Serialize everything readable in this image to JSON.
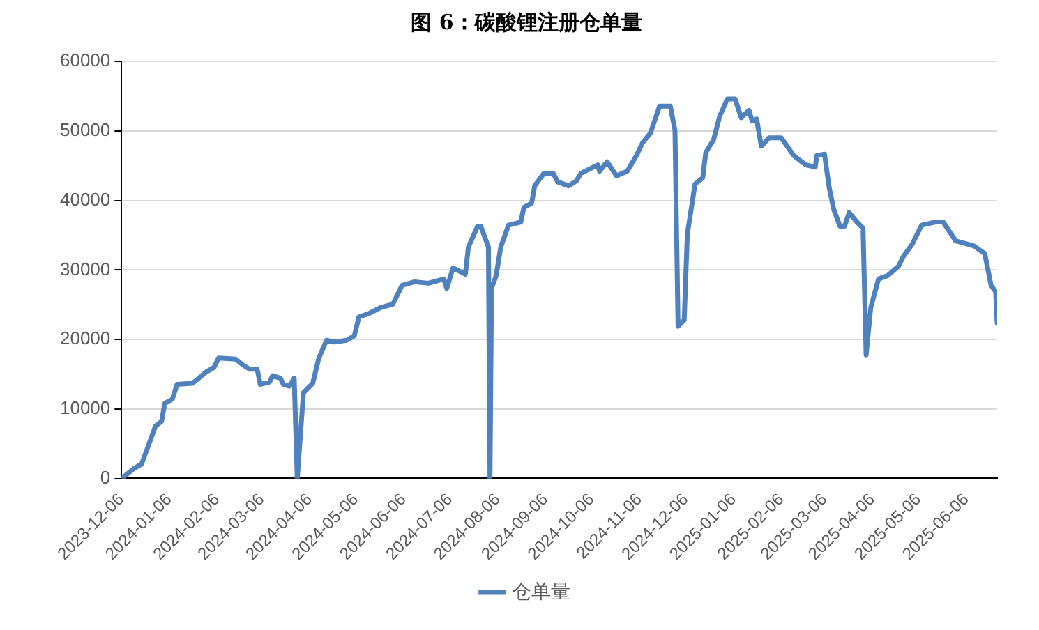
{
  "chart_data": {
    "type": "line",
    "title": "图 6：碳酸锂注册仓单量",
    "x": [
      "2023-12-06",
      "2023-12-14",
      "2023-12-19",
      "2023-12-22",
      "2023-12-28",
      "2024-01-01",
      "2024-01-03",
      "2024-01-08",
      "2024-01-11",
      "2024-01-21",
      "2024-01-30",
      "2024-02-04",
      "2024-02-07",
      "2024-02-18",
      "2024-02-23",
      "2024-02-27",
      "2024-03-03",
      "2024-03-05",
      "2024-03-11",
      "2024-03-13",
      "2024-03-18",
      "2024-03-20",
      "2024-03-24",
      "2024-03-27",
      "2024-03-29",
      "2024-04-02",
      "2024-04-08",
      "2024-04-12",
      "2024-04-17",
      "2024-04-22",
      "2024-04-30",
      "2024-05-05",
      "2024-05-08",
      "2024-05-14",
      "2024-05-22",
      "2024-05-30",
      "2024-06-05",
      "2024-06-13",
      "2024-06-22",
      "2024-07-02",
      "2024-07-04",
      "2024-07-08",
      "2024-07-16",
      "2024-07-18",
      "2024-07-24",
      "2024-07-26",
      "2024-07-31",
      "2024-08-01",
      "2024-08-02",
      "2024-08-05",
      "2024-08-08",
      "2024-08-13",
      "2024-08-21",
      "2024-08-23",
      "2024-08-28",
      "2024-08-30",
      "2024-09-05",
      "2024-09-11",
      "2024-09-14",
      "2024-09-21",
      "2024-09-26",
      "2024-09-29",
      "2024-10-10",
      "2024-10-11",
      "2024-10-16",
      "2024-10-22",
      "2024-10-29",
      "2024-11-04",
      "2024-11-08",
      "2024-11-13",
      "2024-11-19",
      "2024-11-26",
      "2024-11-29",
      "2024-12-01",
      "2024-12-05",
      "2024-12-07",
      "2024-12-12",
      "2024-12-17",
      "2024-12-19",
      "2024-12-24",
      "2024-12-28",
      "2025-01-02",
      "2025-01-07",
      "2025-01-11",
      "2025-01-16",
      "2025-01-18",
      "2025-01-21",
      "2025-01-24",
      "2025-01-29",
      "2025-02-06",
      "2025-02-14",
      "2025-02-22",
      "2025-02-28",
      "2025-03-01",
      "2025-03-06",
      "2025-03-09",
      "2025-03-12",
      "2025-03-16",
      "2025-03-19",
      "2025-03-22",
      "2025-03-27",
      "2025-03-31",
      "2025-04-02",
      "2025-04-05",
      "2025-04-10",
      "2025-04-16",
      "2025-04-23",
      "2025-04-26",
      "2025-05-02",
      "2025-05-08",
      "2025-05-17",
      "2025-05-22",
      "2025-05-30",
      "2025-06-11",
      "2025-06-18",
      "2025-06-22",
      "2025-06-25",
      "2025-06-26"
    ],
    "series": [
      {
        "name": "仓单量",
        "color": "#4f81bd",
        "values": [
          0,
          1450,
          2100,
          3900,
          7550,
          8250,
          10800,
          11450,
          13550,
          13700,
          15350,
          16000,
          17350,
          17200,
          16300,
          15750,
          15750,
          13550,
          13900,
          14800,
          14450,
          13550,
          13300,
          14450,
          0,
          12350,
          13700,
          17350,
          19900,
          19650,
          19900,
          20550,
          23250,
          23700,
          24600,
          25100,
          27800,
          28300,
          28100,
          28700,
          27350,
          30300,
          29400,
          33300,
          36300,
          36300,
          33300,
          0,
          27350,
          29200,
          33300,
          36450,
          36900,
          39000,
          39600,
          42100,
          43900,
          43900,
          42650,
          42100,
          42800,
          43900,
          45100,
          44200,
          45550,
          43550,
          44200,
          46450,
          48300,
          49650,
          53550,
          53550,
          50100,
          21900,
          22800,
          35100,
          42350,
          43250,
          46900,
          48700,
          52100,
          54600,
          54600,
          51900,
          52950,
          51450,
          51700,
          47800,
          49000,
          49000,
          46450,
          45100,
          44800,
          46450,
          46650,
          41900,
          38700,
          36300,
          36300,
          38250,
          36900,
          36000,
          17800,
          24600,
          28700,
          29200,
          30550,
          31900,
          33750,
          36450,
          36900,
          36900,
          34200,
          33450,
          32350,
          27800,
          26900,
          22350
        ]
      }
    ],
    "xlim": [
      "2023-12-06",
      "2025-06-26"
    ],
    "xticks": [
      "2023-12-06",
      "2024-01-06",
      "2024-02-06",
      "2024-03-06",
      "2024-04-06",
      "2024-05-06",
      "2024-06-06",
      "2024-07-06",
      "2024-08-06",
      "2024-09-06",
      "2024-10-06",
      "2024-11-06",
      "2024-12-06",
      "2025-01-06",
      "2025-02-06",
      "2025-03-06",
      "2025-04-06",
      "2025-05-06",
      "2025-06-06"
    ],
    "ylim": [
      0,
      60000
    ],
    "yticks": [
      0,
      10000,
      20000,
      30000,
      40000,
      50000,
      60000
    ],
    "grid": "y",
    "legend": "bottom",
    "marker": "none",
    "line_style": "solid"
  }
}
